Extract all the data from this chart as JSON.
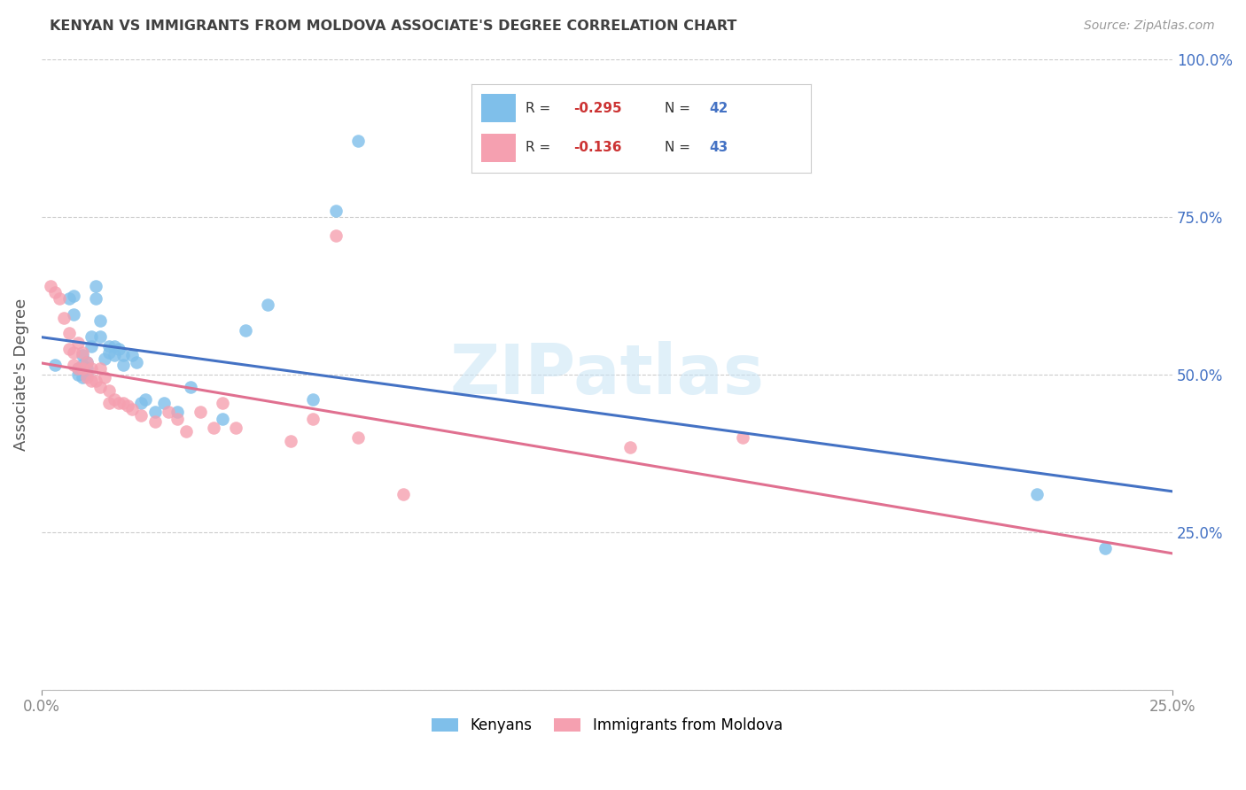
{
  "title": "KENYAN VS IMMIGRANTS FROM MOLDOVA ASSOCIATE'S DEGREE CORRELATION CHART",
  "source": "Source: ZipAtlas.com",
  "ylabel": "Associate's Degree",
  "xlim": [
    0.0,
    0.25
  ],
  "ylim": [
    0.0,
    1.0
  ],
  "yticks": [
    0.0,
    0.25,
    0.5,
    0.75,
    1.0
  ],
  "ytick_labels": [
    "",
    "25.0%",
    "50.0%",
    "75.0%",
    "100.0%"
  ],
  "label_kenyans": "Kenyans",
  "label_moldova": "Immigrants from Moldova",
  "color_blue": "#7fbfea",
  "color_pink": "#f5a0b0",
  "color_line_blue": "#4472c4",
  "color_line_pink": "#e07090",
  "color_title": "#404040",
  "color_r_value": "#cc3333",
  "color_n_value": "#4472c4",
  "color_ytick": "#4472c4",
  "background_color": "#ffffff",
  "legend_r1": "-0.295",
  "legend_n1": "42",
  "legend_r2": "-0.136",
  "legend_n2": "43",
  "blue_x": [
    0.003,
    0.006,
    0.007,
    0.007,
    0.008,
    0.008,
    0.009,
    0.009,
    0.009,
    0.01,
    0.01,
    0.01,
    0.011,
    0.011,
    0.012,
    0.012,
    0.013,
    0.013,
    0.014,
    0.015,
    0.015,
    0.016,
    0.016,
    0.017,
    0.018,
    0.018,
    0.02,
    0.021,
    0.022,
    0.023,
    0.025,
    0.027,
    0.03,
    0.033,
    0.04,
    0.045,
    0.05,
    0.06,
    0.065,
    0.07,
    0.22,
    0.235
  ],
  "blue_y": [
    0.515,
    0.62,
    0.625,
    0.595,
    0.51,
    0.5,
    0.53,
    0.515,
    0.495,
    0.52,
    0.51,
    0.5,
    0.56,
    0.545,
    0.64,
    0.62,
    0.585,
    0.56,
    0.525,
    0.545,
    0.535,
    0.545,
    0.53,
    0.54,
    0.53,
    0.515,
    0.53,
    0.52,
    0.455,
    0.46,
    0.44,
    0.455,
    0.44,
    0.48,
    0.43,
    0.57,
    0.61,
    0.46,
    0.76,
    0.87,
    0.31,
    0.225
  ],
  "pink_x": [
    0.002,
    0.003,
    0.004,
    0.005,
    0.006,
    0.006,
    0.007,
    0.007,
    0.008,
    0.008,
    0.009,
    0.009,
    0.01,
    0.01,
    0.011,
    0.011,
    0.012,
    0.013,
    0.013,
    0.014,
    0.015,
    0.015,
    0.016,
    0.017,
    0.018,
    0.019,
    0.02,
    0.022,
    0.025,
    0.028,
    0.03,
    0.032,
    0.035,
    0.038,
    0.04,
    0.043,
    0.055,
    0.06,
    0.065,
    0.07,
    0.08,
    0.13,
    0.155
  ],
  "pink_y": [
    0.64,
    0.63,
    0.62,
    0.59,
    0.565,
    0.54,
    0.535,
    0.515,
    0.55,
    0.51,
    0.535,
    0.51,
    0.52,
    0.495,
    0.51,
    0.49,
    0.49,
    0.51,
    0.48,
    0.495,
    0.475,
    0.455,
    0.46,
    0.455,
    0.455,
    0.45,
    0.445,
    0.435,
    0.425,
    0.44,
    0.43,
    0.41,
    0.44,
    0.415,
    0.455,
    0.415,
    0.395,
    0.43,
    0.72,
    0.4,
    0.31,
    0.385,
    0.4
  ]
}
